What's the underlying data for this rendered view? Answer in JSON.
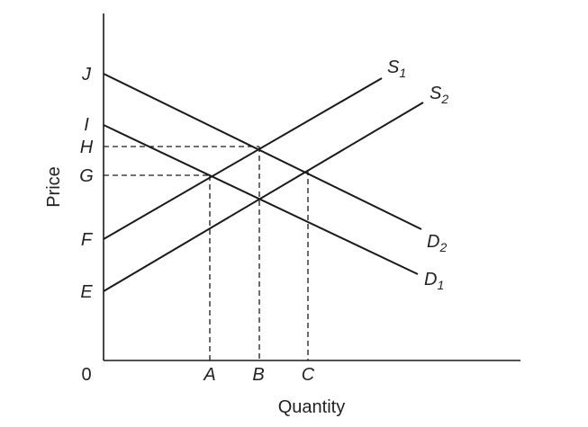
{
  "axes": {
    "x_title": "Quantity",
    "y_title": "Price",
    "origin_label": "0"
  },
  "price_labels": {
    "J": "J",
    "I": "I",
    "H": "H",
    "G": "G",
    "F": "F",
    "E": "E"
  },
  "quantity_labels": {
    "A": "A",
    "B": "B",
    "C": "C"
  },
  "curves": {
    "S1": {
      "letter": "S",
      "sub": "1"
    },
    "S2": {
      "letter": "S",
      "sub": "2"
    },
    "D1": {
      "letter": "D",
      "sub": "1"
    },
    "D2": {
      "letter": "D",
      "sub": "2"
    }
  }
}
